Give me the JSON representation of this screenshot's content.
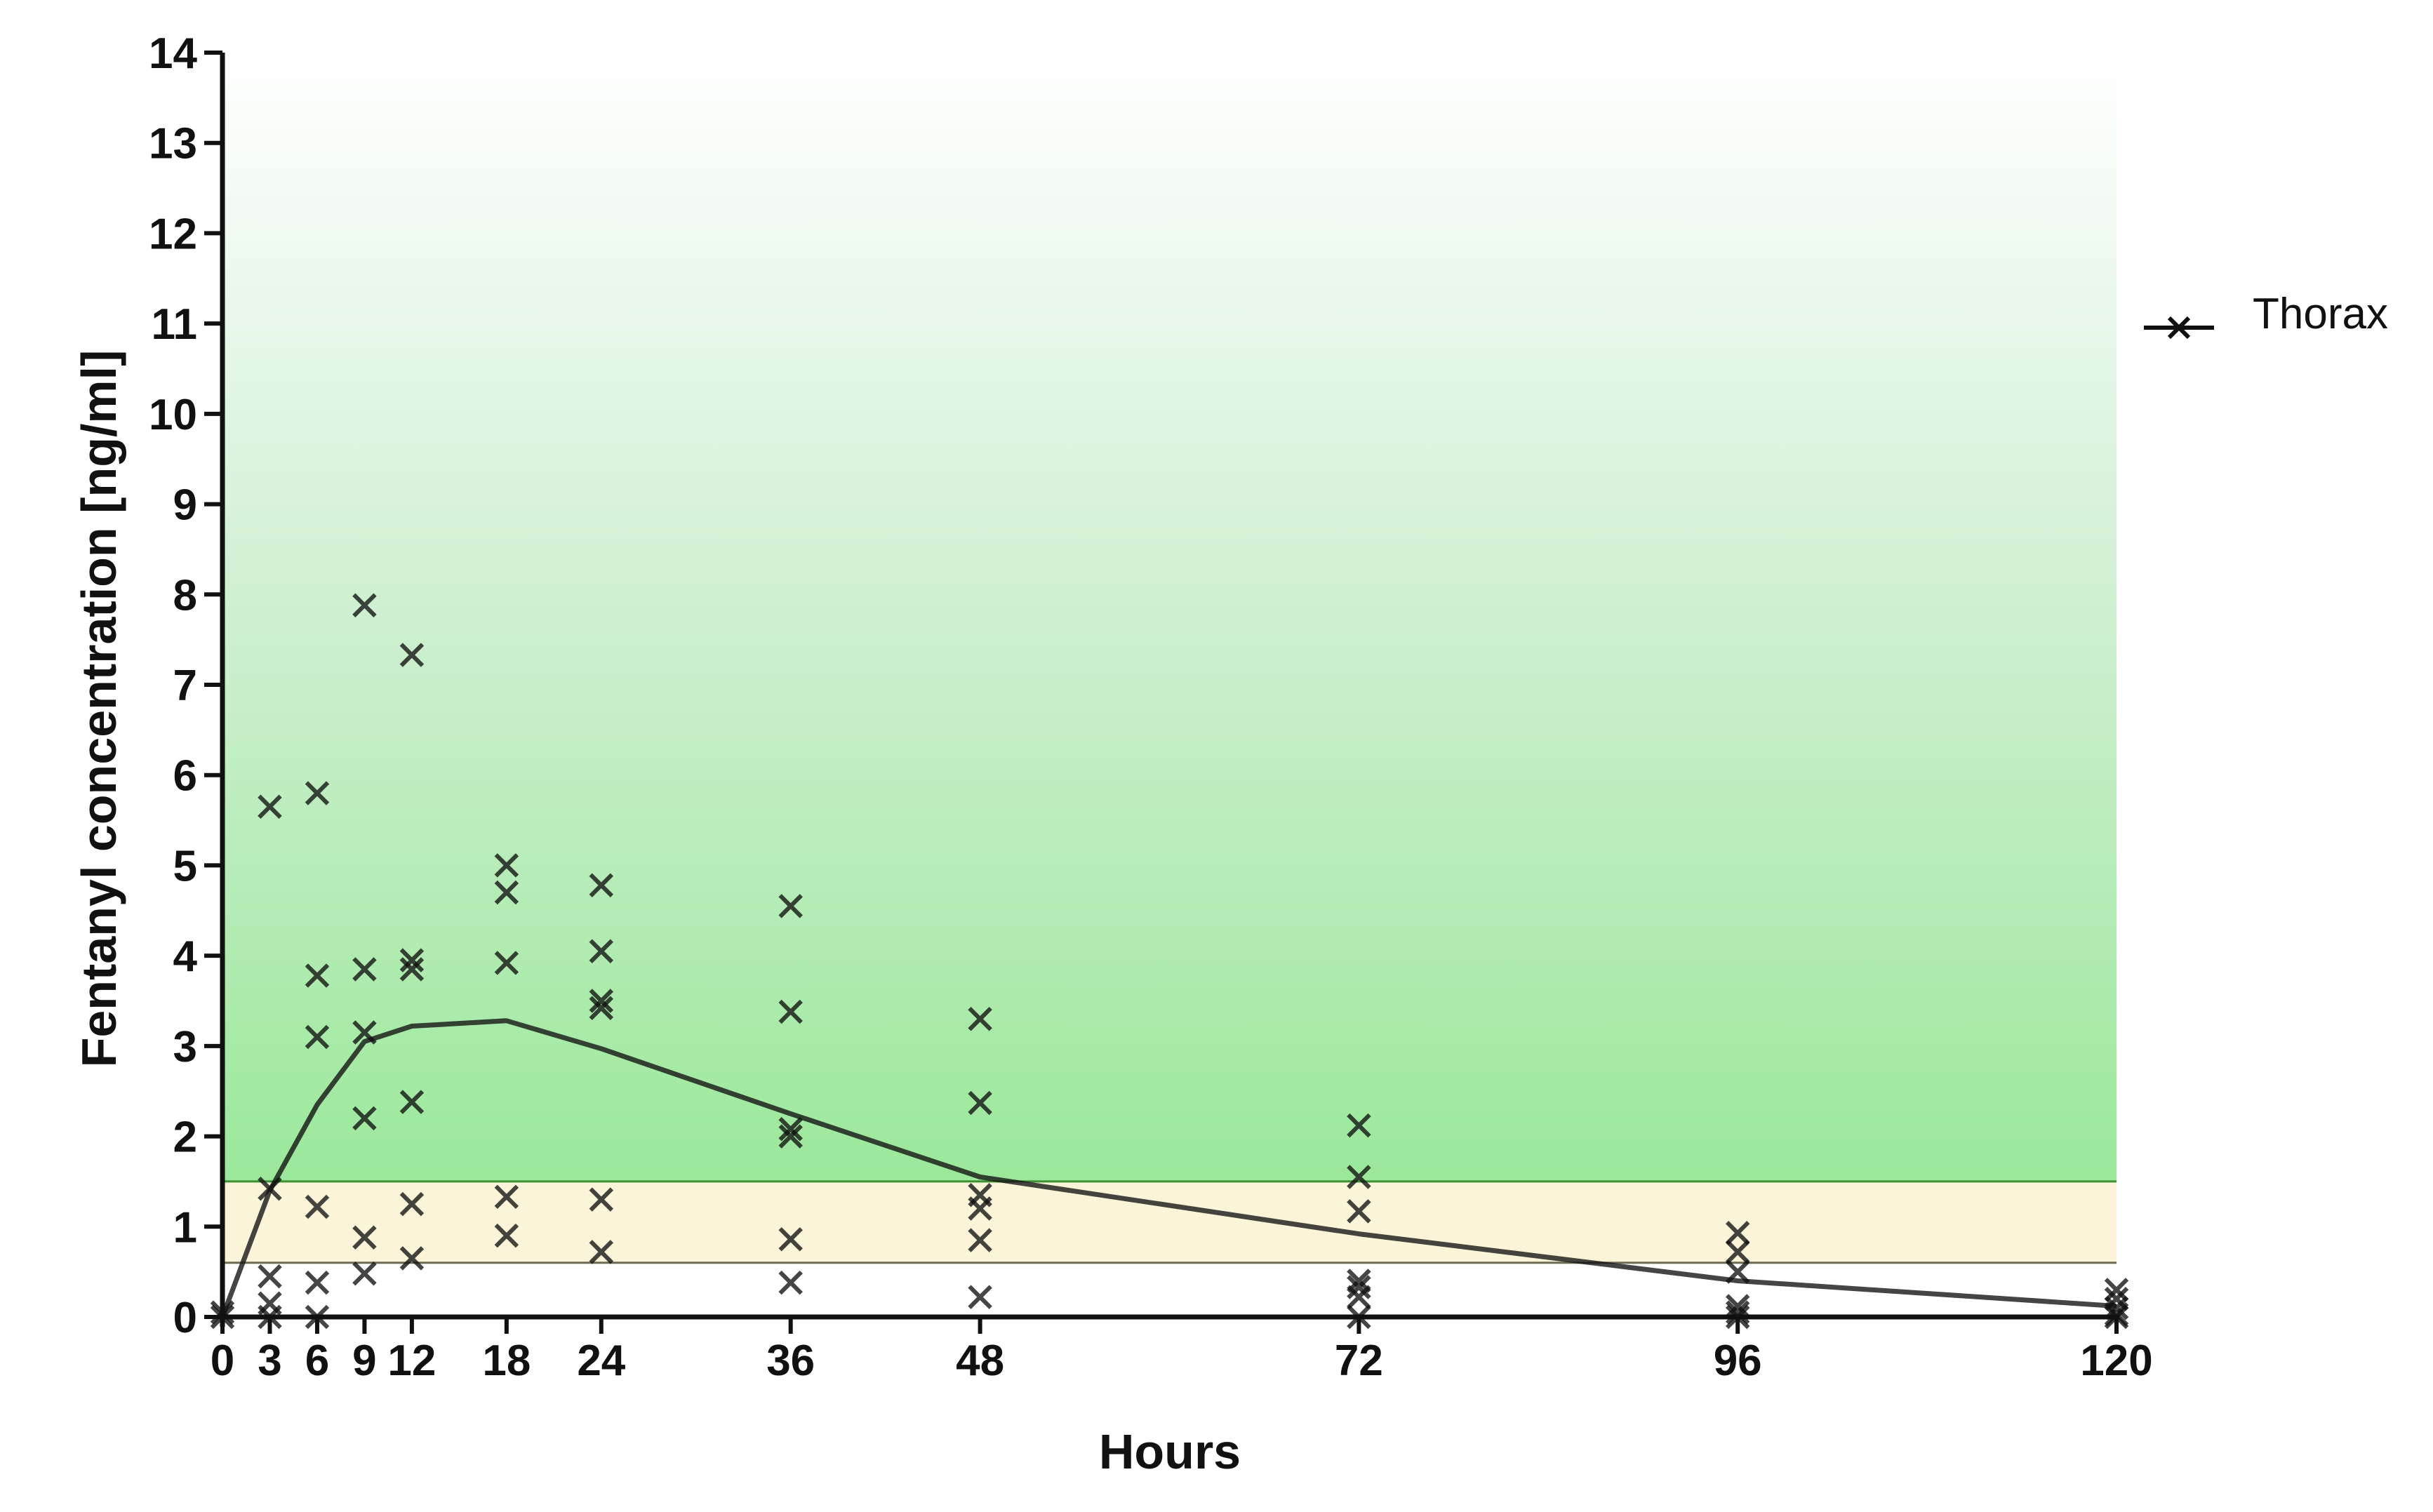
{
  "chart_data": {
    "type": "line",
    "title": "",
    "xlabel": "Hours",
    "ylabel": "Fentanyl concentration [ng/ml]",
    "xlim": [
      0,
      120
    ],
    "ylim": [
      0,
      14
    ],
    "x_ticks": [
      0,
      3,
      6,
      9,
      12,
      18,
      24,
      36,
      48,
      72,
      96,
      120
    ],
    "y_ticks": [
      0,
      1,
      2,
      3,
      4,
      5,
      6,
      7,
      8,
      9,
      10,
      11,
      12,
      13,
      14
    ],
    "grid": false,
    "legend_position": "right",
    "bands": [
      {
        "from": 0.6,
        "to": 1.5,
        "color": "#fbf4d8"
      },
      {
        "from": 1.5,
        "to": 14,
        "color_bottom": "#9be89a",
        "color_top": "#ffffff",
        "gradient": true
      }
    ],
    "series": [
      {
        "name": "Thorax",
        "color": "#111111",
        "line_x": [
          0,
          3,
          6,
          9,
          12,
          18,
          24,
          36,
          48,
          72,
          96,
          120
        ],
        "line_y": [
          0,
          1.4,
          2.35,
          3.05,
          3.22,
          3.28,
          2.97,
          2.25,
          1.55,
          0.92,
          0.4,
          0.12
        ],
        "points": [
          {
            "x": 0,
            "y": 0.05
          },
          {
            "x": 0,
            "y": 0
          },
          {
            "x": 3,
            "y": 5.65
          },
          {
            "x": 3,
            "y": 1.42
          },
          {
            "x": 3,
            "y": 0.45
          },
          {
            "x": 3,
            "y": 0.15
          },
          {
            "x": 3,
            "y": 0
          },
          {
            "x": 6,
            "y": 5.8
          },
          {
            "x": 6,
            "y": 3.78
          },
          {
            "x": 6,
            "y": 3.1
          },
          {
            "x": 6,
            "y": 1.22
          },
          {
            "x": 6,
            "y": 0.38
          },
          {
            "x": 6,
            "y": 0
          },
          {
            "x": 9,
            "y": 7.88
          },
          {
            "x": 9,
            "y": 3.85
          },
          {
            "x": 9,
            "y": 3.15
          },
          {
            "x": 9,
            "y": 2.2
          },
          {
            "x": 9,
            "y": 0.88
          },
          {
            "x": 9,
            "y": 0.48
          },
          {
            "x": 12,
            "y": 7.33
          },
          {
            "x": 12,
            "y": 3.95
          },
          {
            "x": 12,
            "y": 3.85
          },
          {
            "x": 12,
            "y": 2.38
          },
          {
            "x": 12,
            "y": 1.25
          },
          {
            "x": 12,
            "y": 0.65
          },
          {
            "x": 18,
            "y": 5.0
          },
          {
            "x": 18,
            "y": 4.7
          },
          {
            "x": 18,
            "y": 3.92
          },
          {
            "x": 18,
            "y": 1.33
          },
          {
            "x": 18,
            "y": 0.9
          },
          {
            "x": 24,
            "y": 4.78
          },
          {
            "x": 24,
            "y": 4.05
          },
          {
            "x": 24,
            "y": 3.5
          },
          {
            "x": 24,
            "y": 3.42
          },
          {
            "x": 24,
            "y": 1.3
          },
          {
            "x": 24,
            "y": 0.72
          },
          {
            "x": 36,
            "y": 4.55
          },
          {
            "x": 36,
            "y": 3.38
          },
          {
            "x": 36,
            "y": 2.08
          },
          {
            "x": 36,
            "y": 2.0
          },
          {
            "x": 36,
            "y": 0.86
          },
          {
            "x": 36,
            "y": 0.38
          },
          {
            "x": 48,
            "y": 3.3
          },
          {
            "x": 48,
            "y": 2.37
          },
          {
            "x": 48,
            "y": 1.35
          },
          {
            "x": 48,
            "y": 1.2
          },
          {
            "x": 48,
            "y": 0.85
          },
          {
            "x": 48,
            "y": 0.22
          },
          {
            "x": 72,
            "y": 2.12
          },
          {
            "x": 72,
            "y": 1.55
          },
          {
            "x": 72,
            "y": 1.17
          },
          {
            "x": 72,
            "y": 0.4
          },
          {
            "x": 72,
            "y": 0.33
          },
          {
            "x": 72,
            "y": 0.22
          },
          {
            "x": 72,
            "y": 0
          },
          {
            "x": 96,
            "y": 0.93
          },
          {
            "x": 96,
            "y": 0.72
          },
          {
            "x": 96,
            "y": 0.5
          },
          {
            "x": 96,
            "y": 0.12
          },
          {
            "x": 96,
            "y": 0.05
          },
          {
            "x": 96,
            "y": 0
          },
          {
            "x": 120,
            "y": 0.3
          },
          {
            "x": 120,
            "y": 0.2
          },
          {
            "x": 120,
            "y": 0.1
          },
          {
            "x": 120,
            "y": 0.03
          },
          {
            "x": 120,
            "y": 0
          }
        ]
      }
    ]
  }
}
